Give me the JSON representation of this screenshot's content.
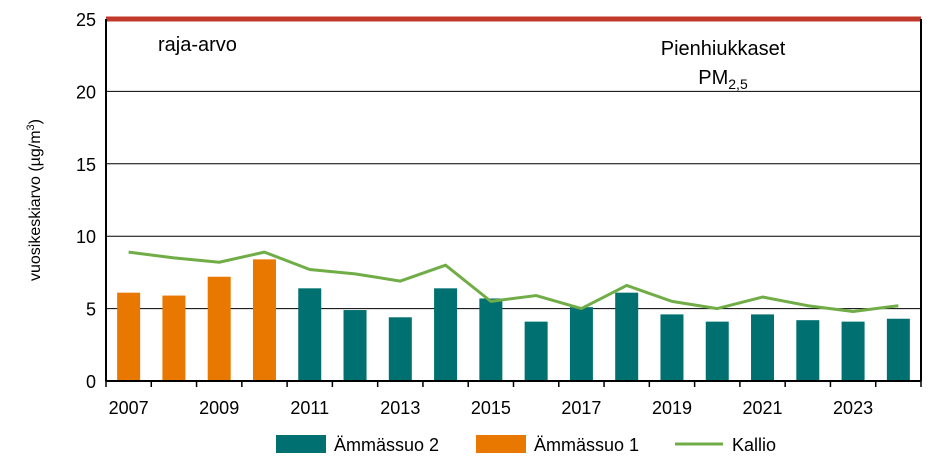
{
  "chart_data": {
    "type": "bar",
    "title": "Pienhiukkaset",
    "title_line2_main": "PM",
    "title_line2_sub": "2,5",
    "ylabel_main": "vuosikeskiarvo (µg/m",
    "ylabel_sup": "3",
    "ylabel_end": ")",
    "ylim": [
      0,
      25
    ],
    "yticks": [
      0,
      5,
      10,
      15,
      20,
      25
    ],
    "grid": true,
    "categories": [
      "2007",
      "2008",
      "2009",
      "2010",
      "2011",
      "2012",
      "2013",
      "2014",
      "2015",
      "2016",
      "2017",
      "2018",
      "2019",
      "2020",
      "2021",
      "2022",
      "2023",
      "2024"
    ],
    "xtick_labels": [
      "2007",
      "",
      "2009",
      "",
      "2011",
      "",
      "2013",
      "",
      "2015",
      "",
      "2017",
      "",
      "2019",
      "",
      "2021",
      "",
      "2023",
      ""
    ],
    "series": [
      {
        "name": "Ämmässuo 2",
        "type": "bar",
        "color": "#007070",
        "values": [
          null,
          null,
          null,
          null,
          6.4,
          4.9,
          4.4,
          6.4,
          5.7,
          4.1,
          5.1,
          6.1,
          4.6,
          4.1,
          4.6,
          4.2,
          4.1,
          4.3
        ]
      },
      {
        "name": "Ämmässuo 1",
        "type": "bar",
        "color": "#E87800",
        "values": [
          6.1,
          5.9,
          7.2,
          8.4,
          null,
          null,
          null,
          null,
          null,
          null,
          null,
          null,
          null,
          null,
          null,
          null,
          null,
          null
        ]
      },
      {
        "name": "Kallio",
        "type": "line",
        "color": "#70AD47",
        "values": [
          8.9,
          8.5,
          8.2,
          8.9,
          7.7,
          7.4,
          6.9,
          8.0,
          5.5,
          5.9,
          5.0,
          6.6,
          5.5,
          5.0,
          5.8,
          5.2,
          4.8,
          5.2
        ]
      }
    ],
    "limit_line": {
      "label": "raja-arvo",
      "value": 25,
      "color": "#C0392B"
    },
    "legend_position": "bottom"
  }
}
